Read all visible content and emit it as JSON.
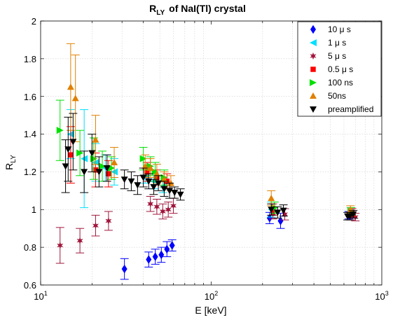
{
  "chart_data": {
    "type": "scatter",
    "title_main": "R",
    "title_sub": "LY",
    "title_rest": "of  NaI(Tl) crystal",
    "xlabel": "E [keV]",
    "ylabel_main": "R",
    "ylabel_sub": "LY",
    "xscale": "log",
    "xlim": [
      10,
      1000
    ],
    "ylim": [
      0.6,
      2.0
    ],
    "xticks": [
      {
        "value": 10,
        "base": "10",
        "exp": "1"
      },
      {
        "value": 100,
        "base": "10",
        "exp": "2"
      },
      {
        "value": 1000,
        "base": "10",
        "exp": "3"
      }
    ],
    "yticks": [
      0.6,
      0.8,
      1,
      1.2,
      1.4,
      1.6,
      1.8,
      2
    ],
    "ytick_labels": [
      "0.6",
      "0.8",
      "1",
      "1.2",
      "1.4",
      "1.6",
      "1.8",
      "2"
    ],
    "grid": true,
    "legend_position": "top-right",
    "series": [
      {
        "name": "10  μ s",
        "marker": "diamond",
        "color": "#0000ff",
        "points": [
          {
            "x": 31,
            "y": 0.685,
            "err": 0.055
          },
          {
            "x": 43,
            "y": 0.735,
            "err": 0.04
          },
          {
            "x": 47,
            "y": 0.75,
            "err": 0.04
          },
          {
            "x": 51,
            "y": 0.76,
            "err": 0.04
          },
          {
            "x": 55,
            "y": 0.79,
            "err": 0.04
          },
          {
            "x": 59,
            "y": 0.81,
            "err": 0.03
          },
          {
            "x": 220,
            "y": 0.955,
            "err": 0.03
          },
          {
            "x": 255,
            "y": 0.94,
            "err": 0.04
          },
          {
            "x": 640,
            "y": 0.97,
            "err": 0.02
          },
          {
            "x": 670,
            "y": 0.975,
            "err": 0.02
          }
        ]
      },
      {
        "name": "1  μ s",
        "marker": "triangle-left",
        "color": "#00e0ff",
        "points": [
          {
            "x": 15,
            "y": 1.4,
            "err": 0.13
          },
          {
            "x": 18,
            "y": 1.27,
            "err": 0.26
          },
          {
            "x": 21,
            "y": 1.25,
            "err": 0.1
          },
          {
            "x": 24,
            "y": 1.22,
            "err": 0.07
          },
          {
            "x": 27,
            "y": 1.2,
            "err": 0.07
          },
          {
            "x": 41,
            "y": 1.18,
            "err": 0.04
          },
          {
            "x": 46,
            "y": 1.15,
            "err": 0.04
          },
          {
            "x": 52,
            "y": 1.12,
            "err": 0.03
          },
          {
            "x": 225,
            "y": 1.0,
            "err": 0.04
          },
          {
            "x": 660,
            "y": 0.99,
            "err": 0.02
          }
        ]
      },
      {
        "name": "5  μ s",
        "marker": "star",
        "color": "#a0163c",
        "points": [
          {
            "x": 13,
            "y": 0.81,
            "err": 0.095
          },
          {
            "x": 17,
            "y": 0.835,
            "err": 0.065
          },
          {
            "x": 21,
            "y": 0.915,
            "err": 0.055
          },
          {
            "x": 25,
            "y": 0.94,
            "err": 0.05
          },
          {
            "x": 44,
            "y": 1.03,
            "err": 0.04
          },
          {
            "x": 48,
            "y": 1.015,
            "err": 0.04
          },
          {
            "x": 52,
            "y": 0.99,
            "err": 0.04
          },
          {
            "x": 56,
            "y": 1.0,
            "err": 0.04
          },
          {
            "x": 60,
            "y": 1.02,
            "err": 0.04
          },
          {
            "x": 230,
            "y": 0.98,
            "err": 0.03
          },
          {
            "x": 270,
            "y": 0.975,
            "err": 0.03
          },
          {
            "x": 660,
            "y": 0.965,
            "err": 0.02
          },
          {
            "x": 700,
            "y": 0.96,
            "err": 0.02
          }
        ]
      },
      {
        "name": "0.5  μ s",
        "marker": "square",
        "color": "#ff0000",
        "points": [
          {
            "x": 15,
            "y": 1.29,
            "err": 0.15
          },
          {
            "x": 21,
            "y": 1.21,
            "err": 0.09
          },
          {
            "x": 25,
            "y": 1.19,
            "err": 0.07
          },
          {
            "x": 42,
            "y": 1.2,
            "err": 0.05
          },
          {
            "x": 48,
            "y": 1.17,
            "err": 0.04
          },
          {
            "x": 55,
            "y": 1.15,
            "err": 0.04
          },
          {
            "x": 230,
            "y": 1.0,
            "err": 0.03
          },
          {
            "x": 670,
            "y": 0.985,
            "err": 0.02
          }
        ]
      },
      {
        "name": "100 ns",
        "marker": "triangle-right",
        "color": "#00e000",
        "points": [
          {
            "x": 13,
            "y": 1.42,
            "err": 0.16
          },
          {
            "x": 17,
            "y": 1.3,
            "err": 0.12
          },
          {
            "x": 20.5,
            "y": 1.27,
            "err": 0.11
          },
          {
            "x": 23,
            "y": 1.23,
            "err": 0.08
          },
          {
            "x": 26,
            "y": 1.22,
            "err": 0.06
          },
          {
            "x": 40,
            "y": 1.27,
            "err": 0.06
          },
          {
            "x": 44,
            "y": 1.23,
            "err": 0.05
          },
          {
            "x": 47,
            "y": 1.2,
            "err": 0.05
          },
          {
            "x": 53,
            "y": 1.17,
            "err": 0.04
          },
          {
            "x": 235,
            "y": 1.01,
            "err": 0.03
          },
          {
            "x": 660,
            "y": 0.99,
            "err": 0.02
          }
        ]
      },
      {
        "name": "50ns",
        "marker": "triangle-up",
        "color": "#e08000",
        "points": [
          {
            "x": 15,
            "y": 1.65,
            "err": 0.23
          },
          {
            "x": 16,
            "y": 1.59,
            "err": 0.23
          },
          {
            "x": 21,
            "y": 1.37,
            "err": 0.13
          },
          {
            "x": 27,
            "y": 1.25,
            "err": 0.08
          },
          {
            "x": 41,
            "y": 1.23,
            "err": 0.06
          },
          {
            "x": 44,
            "y": 1.22,
            "err": 0.05
          },
          {
            "x": 48,
            "y": 1.19,
            "err": 0.05
          },
          {
            "x": 53,
            "y": 1.16,
            "err": 0.04
          },
          {
            "x": 58,
            "y": 1.14,
            "err": 0.04
          },
          {
            "x": 225,
            "y": 1.06,
            "err": 0.04
          },
          {
            "x": 655,
            "y": 1.0,
            "err": 0.02
          }
        ]
      },
      {
        "name": "preamplified",
        "marker": "triangle-down",
        "color": "#000000",
        "points": [
          {
            "x": 14,
            "y": 1.23,
            "err": 0.14
          },
          {
            "x": 14.5,
            "y": 1.32,
            "err": 0.17
          },
          {
            "x": 15.5,
            "y": 1.36,
            "err": 0.15
          },
          {
            "x": 18,
            "y": 1.2,
            "err": 0.11
          },
          {
            "x": 20,
            "y": 1.3,
            "err": 0.1
          },
          {
            "x": 22,
            "y": 1.2,
            "err": 0.08
          },
          {
            "x": 24.5,
            "y": 1.22,
            "err": 0.07
          },
          {
            "x": 31,
            "y": 1.16,
            "err": 0.05
          },
          {
            "x": 34,
            "y": 1.15,
            "err": 0.05
          },
          {
            "x": 37,
            "y": 1.13,
            "err": 0.05
          },
          {
            "x": 40,
            "y": 1.17,
            "err": 0.05
          },
          {
            "x": 43,
            "y": 1.15,
            "err": 0.04
          },
          {
            "x": 46,
            "y": 1.12,
            "err": 0.04
          },
          {
            "x": 49,
            "y": 1.14,
            "err": 0.04
          },
          {
            "x": 53,
            "y": 1.11,
            "err": 0.04
          },
          {
            "x": 57,
            "y": 1.1,
            "err": 0.04
          },
          {
            "x": 61,
            "y": 1.09,
            "err": 0.03
          },
          {
            "x": 66,
            "y": 1.08,
            "err": 0.03
          },
          {
            "x": 225,
            "y": 1.0,
            "err": 0.03
          },
          {
            "x": 245,
            "y": 0.985,
            "err": 0.03
          },
          {
            "x": 265,
            "y": 0.995,
            "err": 0.03
          },
          {
            "x": 630,
            "y": 0.965,
            "err": 0.02
          },
          {
            "x": 650,
            "y": 0.965,
            "err": 0.02
          },
          {
            "x": 680,
            "y": 0.975,
            "err": 0.02
          }
        ]
      }
    ]
  }
}
